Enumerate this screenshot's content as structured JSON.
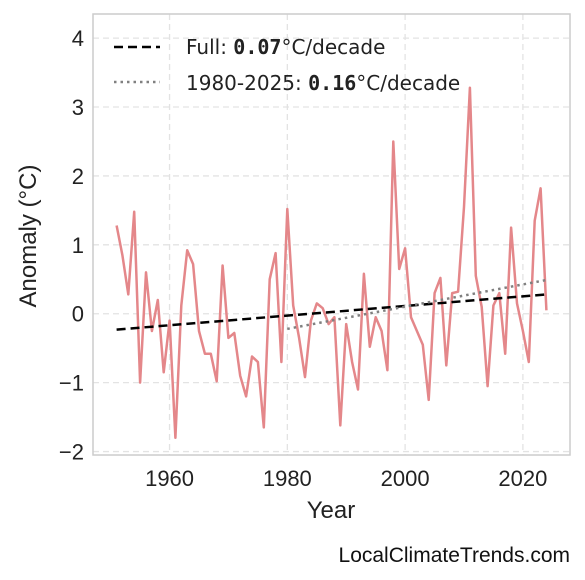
{
  "chart_data": {
    "type": "line",
    "xlabel": "Year",
    "ylabel": "Anomaly (°C)",
    "xlim": [
      1947,
      2028
    ],
    "ylim": [
      -2.05,
      4.35
    ],
    "xticks": [
      1960,
      1980,
      2000,
      2020
    ],
    "yticks": [
      -2,
      -1,
      0,
      1,
      2,
      3,
      4
    ],
    "ytick_labels": [
      "−2",
      "−1",
      "0",
      "1",
      "2",
      "3",
      "4"
    ],
    "grid": true,
    "legend_position": "top-left",
    "series": [
      {
        "kind": "annual",
        "color": "#e4878a",
        "x": [
          1951,
          1952,
          1953,
          1954,
          1955,
          1956,
          1957,
          1958,
          1959,
          1960,
          1961,
          1962,
          1963,
          1964,
          1965,
          1966,
          1967,
          1968,
          1969,
          1970,
          1971,
          1972,
          1973,
          1974,
          1975,
          1976,
          1977,
          1978,
          1979,
          1980,
          1981,
          1982,
          1983,
          1984,
          1985,
          1986,
          1987,
          1988,
          1989,
          1990,
          1991,
          1992,
          1993,
          1994,
          1995,
          1996,
          1997,
          1998,
          1999,
          2000,
          2001,
          2002,
          2003,
          2004,
          2005,
          2006,
          2007,
          2008,
          2009,
          2010,
          2011,
          2012,
          2013,
          2014,
          2015,
          2016,
          2017,
          2018,
          2019,
          2020,
          2021,
          2022,
          2023,
          2024
        ],
        "y": [
          1.28,
          0.85,
          0.28,
          1.48,
          -1.0,
          0.6,
          -0.25,
          0.2,
          -0.85,
          -0.1,
          -1.8,
          0.12,
          0.92,
          0.72,
          -0.25,
          -0.58,
          -0.58,
          -0.98,
          0.7,
          -0.35,
          -0.28,
          -0.9,
          -1.2,
          -0.62,
          -0.7,
          -1.65,
          0.5,
          0.88,
          -0.7,
          1.52,
          0.12,
          -0.35,
          -0.92,
          -0.1,
          0.15,
          0.08,
          -0.15,
          -0.05,
          -1.62,
          -0.15,
          -0.7,
          -1.1,
          0.58,
          -0.48,
          -0.05,
          -0.25,
          -0.82,
          2.5,
          0.65,
          0.95,
          -0.05,
          -0.25,
          -0.45,
          -1.25,
          0.3,
          0.52,
          -0.75,
          0.3,
          0.32,
          1.55,
          3.28,
          0.55,
          0.1,
          -1.05,
          0.12,
          0.3,
          -0.58,
          1.25,
          0.15,
          -0.25,
          -0.7,
          1.35,
          1.82,
          0.05
        ]
      },
      {
        "kind": "trend-full",
        "color": "#000000",
        "dash": "dashed",
        "x": [
          1951,
          2024
        ],
        "y": [
          -0.23,
          0.28
        ]
      },
      {
        "kind": "trend-recent",
        "color": "#808080",
        "dash": "dotted",
        "x": [
          1980,
          2024
        ],
        "y": [
          -0.22,
          0.49
        ]
      }
    ],
    "legend": [
      {
        "prefix": "Full: ",
        "value": "0.07",
        "suffix": "°C/decade"
      },
      {
        "prefix": "1980-2025: ",
        "value": "0.16",
        "suffix": "°C/decade"
      }
    ]
  },
  "watermark": "LocalClimateTrends.com"
}
